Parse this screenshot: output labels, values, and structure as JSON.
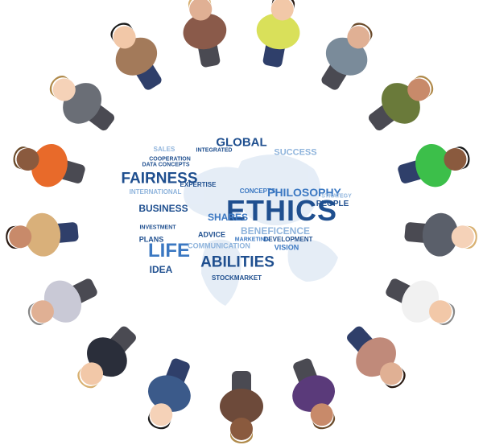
{
  "colors": {
    "background": "#ffffff",
    "word_dark": "#1f4f8f",
    "word_mid": "#3b78c2",
    "word_light": "#8fb4dc"
  },
  "word_cloud": {
    "main": "ETHICS",
    "large": [
      "FAIRNESS",
      "LIFE",
      "ABILITIES",
      "GLOBAL",
      "PHILOSOPHY"
    ],
    "medium": [
      "BUSINESS",
      "SHARES",
      "PEOPLE",
      "SUCCESS",
      "BENEFICENCE",
      "IDEA",
      "EXPERTISE",
      "DEVELOPMENT",
      "VISION",
      "CONCEPTS",
      "SALES",
      "PLANS",
      "ADVICE",
      "COMMUNICATION",
      "COOPERATION",
      "INTEGRATED",
      "INTERNATIONAL",
      "DATA CONCEPTS",
      "STOCKMARKET",
      "STRATEGY",
      "INVESTMENT",
      "MARKETING"
    ]
  },
  "people_count": 17,
  "icons": [
    "globe-map-icon"
  ]
}
